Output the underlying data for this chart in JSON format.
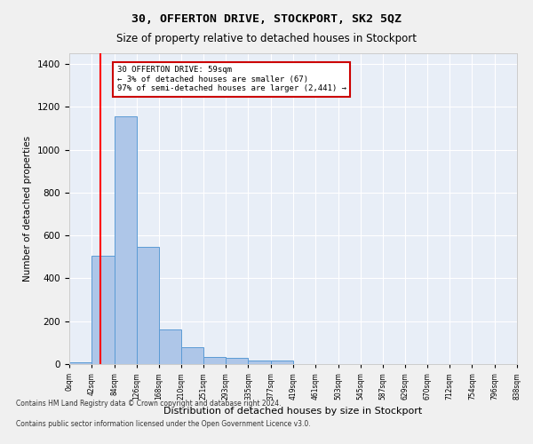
{
  "title": "30, OFFERTON DRIVE, STOCKPORT, SK2 5QZ",
  "subtitle": "Size of property relative to detached houses in Stockport",
  "xlabel": "Distribution of detached houses by size in Stockport",
  "ylabel": "Number of detached properties",
  "bin_edges": [
    0,
    42,
    84,
    126,
    168,
    210,
    251,
    293,
    335,
    377,
    419,
    461,
    503,
    545,
    587,
    629,
    670,
    712,
    754,
    796,
    838
  ],
  "bar_heights": [
    10,
    505,
    1155,
    545,
    160,
    80,
    35,
    27,
    15,
    15,
    0,
    0,
    0,
    0,
    0,
    0,
    0,
    0,
    0,
    0
  ],
  "bar_color": "#aec6e8",
  "bar_edgecolor": "#5b9bd5",
  "red_line_x": 59,
  "ylim": [
    0,
    1450
  ],
  "yticks": [
    0,
    200,
    400,
    600,
    800,
    1000,
    1200,
    1400
  ],
  "annotation_text": "30 OFFERTON DRIVE: 59sqm\n← 3% of detached houses are smaller (67)\n97% of semi-detached houses are larger (2,441) →",
  "annotation_box_color": "#ffffff",
  "annotation_box_edgecolor": "#cc0000",
  "footer_line1": "Contains HM Land Registry data © Crown copyright and database right 2024.",
  "footer_line2": "Contains public sector information licensed under the Open Government Licence v3.0.",
  "background_color": "#f0f0f0",
  "plot_background_color": "#e8eef7",
  "grid_color": "#ffffff",
  "tick_labels": [
    "0sqm",
    "42sqm",
    "84sqm",
    "126sqm",
    "168sqm",
    "210sqm",
    "251sqm",
    "293sqm",
    "335sqm",
    "377sqm",
    "419sqm",
    "461sqm",
    "503sqm",
    "545sqm",
    "587sqm",
    "629sqm",
    "670sqm",
    "712sqm",
    "754sqm",
    "796sqm",
    "838sqm"
  ]
}
